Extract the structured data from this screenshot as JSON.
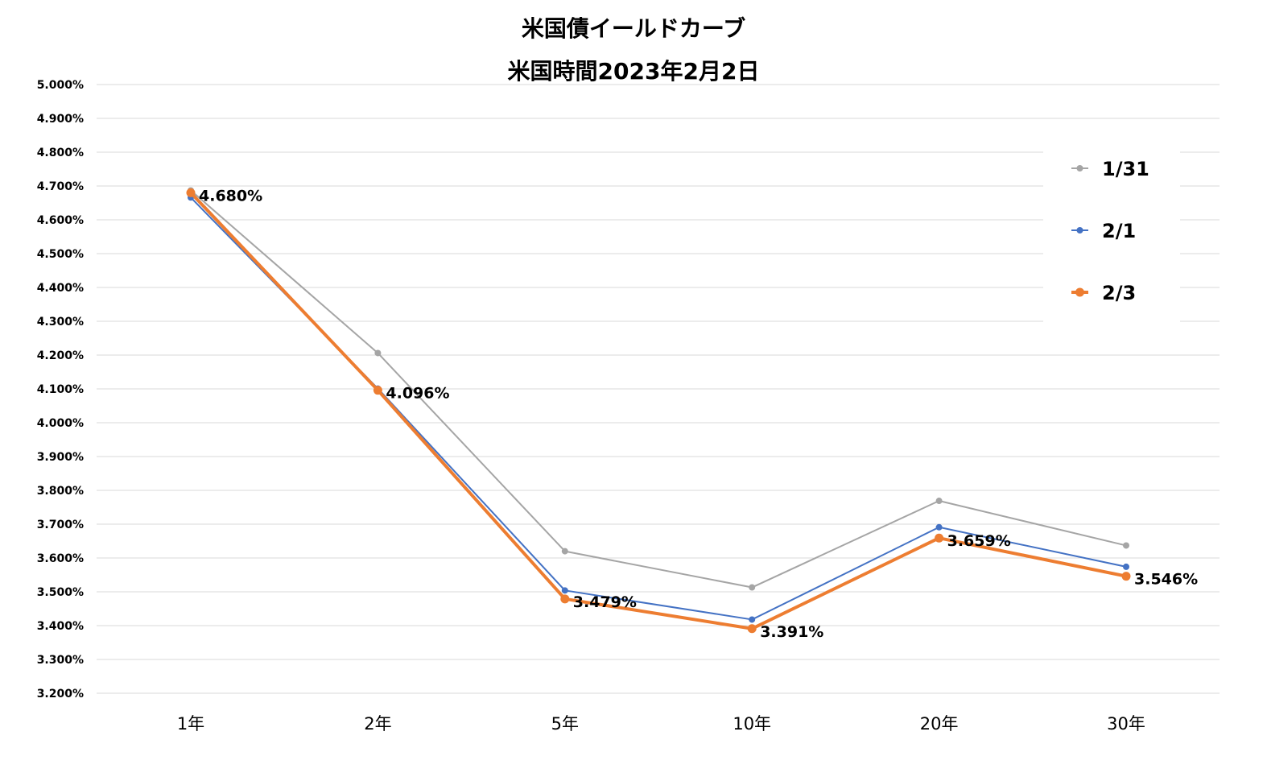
{
  "chart_data": {
    "type": "line",
    "title": "米国債イールドカーブ",
    "subtitle": "米国時間2023年2月2日",
    "categories": [
      "1年",
      "2年",
      "5年",
      "10年",
      "20年",
      "30年"
    ],
    "ylim": [
      3.2,
      5.0
    ],
    "ytick_labels": [
      "5.000%",
      "4.900%",
      "4.800%",
      "4.700%",
      "4.600%",
      "4.500%",
      "4.400%",
      "4.300%",
      "4.200%",
      "4.100%",
      "4.000%",
      "3.900%",
      "3.800%",
      "3.700%",
      "3.600%",
      "3.500%",
      "3.400%",
      "3.300%",
      "3.200%"
    ],
    "grid": true,
    "legend_position": "right",
    "series": [
      {
        "name": "1/31",
        "color": "#a5a5a5",
        "values": [
          4.687,
          4.206,
          3.62,
          3.513,
          3.769,
          3.637
        ]
      },
      {
        "name": "2/1",
        "color": "#4472c4",
        "values": [
          4.666,
          4.101,
          3.504,
          3.418,
          3.691,
          3.574
        ]
      },
      {
        "name": "2/3",
        "color": "#ed7d31",
        "values": [
          4.68,
          4.096,
          3.479,
          3.391,
          3.659,
          3.546
        ],
        "data_labels": [
          "4.680%",
          "4.096%",
          "3.479%",
          "3.391%",
          "3.659%",
          "3.546%"
        ]
      }
    ]
  }
}
